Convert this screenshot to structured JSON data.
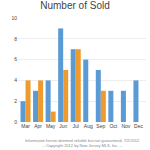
{
  "chart_data": {
    "type": "bar",
    "title": "Number of Sold",
    "categories": [
      "Mar",
      "Apr",
      "May",
      "Jun",
      "Jul",
      "Aug",
      "Sep",
      "Oct",
      "Nov",
      "Dec"
    ],
    "series": [
      {
        "color": "#5b9bd5",
        "values": [
          2,
          3,
          4,
          9,
          7,
          6,
          5,
          3,
          3,
          4
        ]
      },
      {
        "color": "#ed9b2f",
        "values": [
          4,
          4,
          1,
          5,
          7,
          0,
          3,
          0,
          0,
          0
        ]
      }
    ],
    "ylim": [
      0,
      10
    ],
    "yticks": [
      0,
      2,
      4,
      6,
      8,
      10
    ],
    "grid": true,
    "annotations": [
      "Information herein deemed reliable but not guaranteed. 7/2/2012\n-- Copyright 2012 by New Jersey MLS, Inc. --"
    ]
  }
}
